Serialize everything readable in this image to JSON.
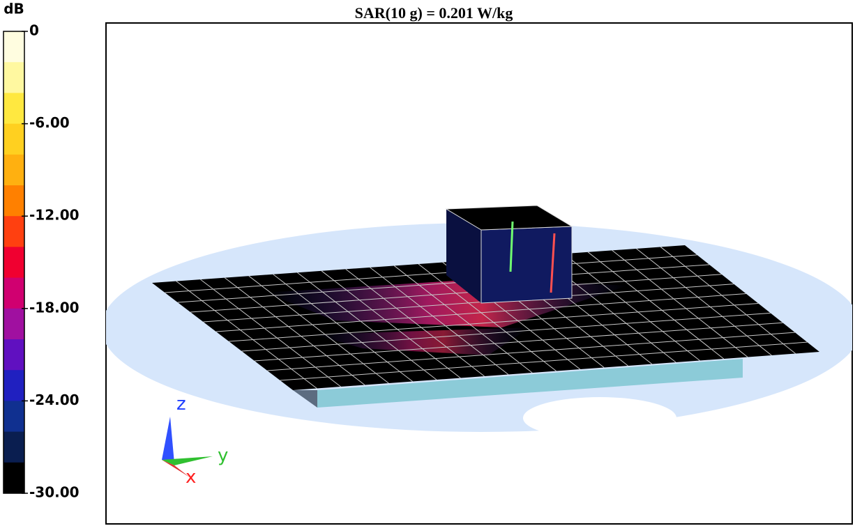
{
  "header": {
    "title": "SAR(10 g) = 0.201 W/kg"
  },
  "colorbar": {
    "unit": "dB",
    "range": [
      -30,
      0
    ],
    "ticks": [
      {
        "value": 0,
        "label": "0"
      },
      {
        "value": -6,
        "label": "-6.00"
      },
      {
        "value": -12,
        "label": "-12.00"
      },
      {
        "value": -18,
        "label": "-18.00"
      },
      {
        "value": -24,
        "label": "-24.00"
      },
      {
        "value": -30,
        "label": "-30.00"
      }
    ]
  },
  "axes_triad": {
    "z": "z",
    "y": "y",
    "x": "x"
  }
}
